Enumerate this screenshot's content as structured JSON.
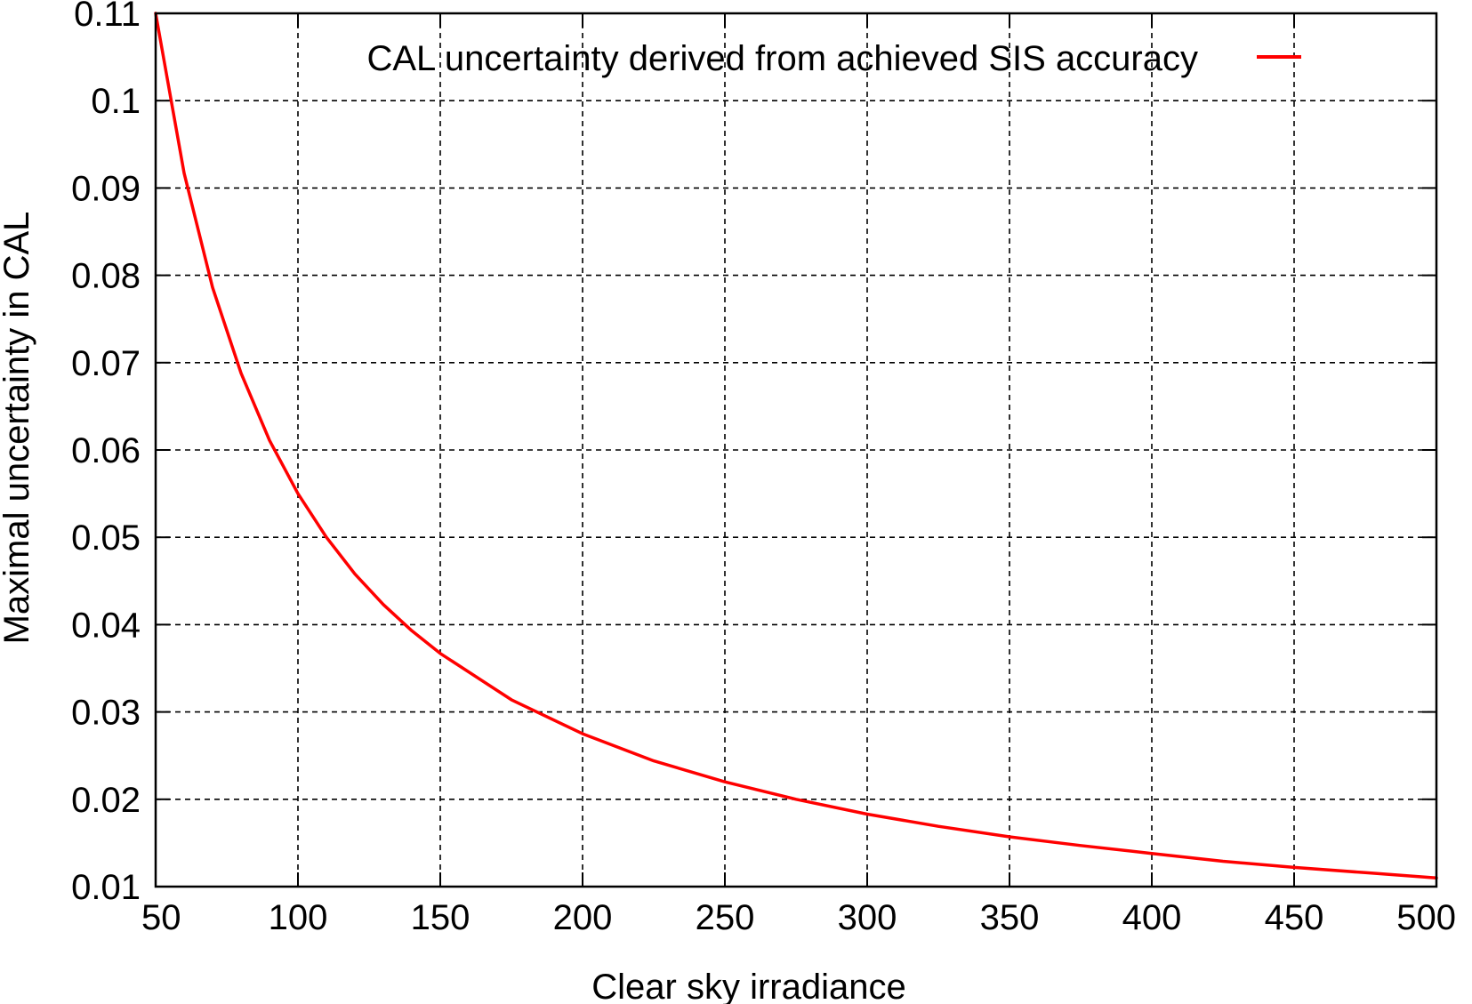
{
  "chart_data": {
    "type": "line",
    "xlabel": "Clear sky irradiance",
    "ylabel": "Maximal uncertainty in CAL",
    "xlim": [
      50,
      500
    ],
    "ylim": [
      0.01,
      0.11
    ],
    "x_ticks": [
      50,
      100,
      150,
      200,
      250,
      300,
      350,
      400,
      450,
      500
    ],
    "x_tick_labels": [
      "50",
      "100",
      "150",
      "200",
      "250",
      "300",
      "350",
      "400",
      "450",
      "500"
    ],
    "y_ticks": [
      0.01,
      0.02,
      0.03,
      0.04,
      0.05,
      0.06,
      0.07,
      0.08,
      0.09,
      0.1,
      0.11
    ],
    "y_tick_labels": [
      "0.01",
      "0.02",
      "0.03",
      "0.04",
      "0.05",
      "0.06",
      "0.07",
      "0.08",
      "0.09",
      "0.1",
      "0.11"
    ],
    "grid": true,
    "legend_position": "top-right",
    "series": [
      {
        "name": "CAL uncertainty derived from achieved SIS accuracy",
        "color": "#ff0000",
        "x": [
          50,
          60,
          70,
          80,
          90,
          100,
          110,
          120,
          130,
          140,
          150,
          175,
          200,
          225,
          250,
          275,
          300,
          325,
          350,
          375,
          400,
          425,
          450,
          475,
          500
        ],
        "y": [
          0.11,
          0.0917,
          0.0786,
          0.0688,
          0.0611,
          0.055,
          0.05,
          0.0458,
          0.0423,
          0.0393,
          0.0367,
          0.0314,
          0.0275,
          0.0244,
          0.022,
          0.02,
          0.0183,
          0.0169,
          0.0157,
          0.0147,
          0.0138,
          0.0129,
          0.0122,
          0.0116,
          0.011
        ]
      }
    ]
  }
}
